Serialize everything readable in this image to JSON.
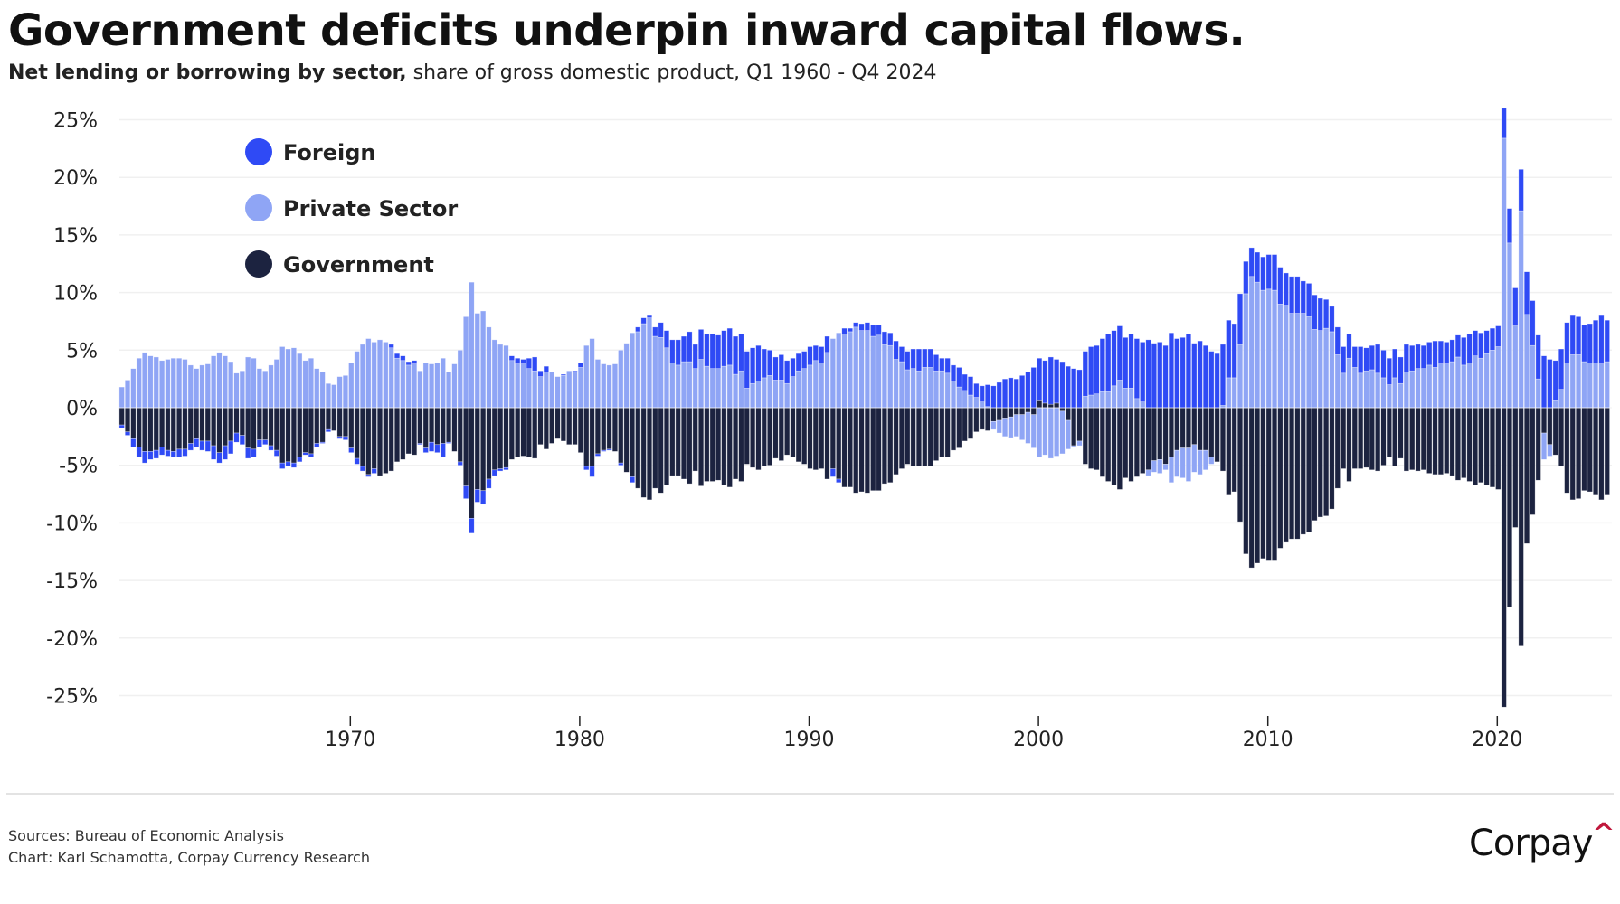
{
  "title": "Government deficits underpin inward capital flows.",
  "subtitle_bold": "Net lending or borrowing by sector,",
  "subtitle_rest": " share of gross domestic product, Q1 1960 - Q4 2024",
  "footer": {
    "sources": "Sources: Bureau of Economic Analysis",
    "credit": "Chart: Karl Schamotta, Corpay Currency Research",
    "logo": "Corpay"
  },
  "chart_data": {
    "type": "bar",
    "stacked": true,
    "x_start": "Q1 1960",
    "x_end": "Q4 2024",
    "frequency": "quarterly",
    "ylim": [
      -25,
      25
    ],
    "y_ticks": [
      25,
      20,
      15,
      10,
      5,
      0,
      -5,
      -10,
      -15,
      -20,
      -25
    ],
    "y_tick_labels": [
      "25%",
      "20%",
      "15%",
      "10%",
      "5%",
      "0%",
      "-5%",
      "-10%",
      "-15%",
      "-20%",
      "-25%"
    ],
    "x_ticks": [
      1970,
      1980,
      1990,
      2000,
      2010,
      2020
    ],
    "x_tick_labels": [
      "1970",
      "1980",
      "1990",
      "2000",
      "2010",
      "2020"
    ],
    "grid": "horizontal",
    "legend_position": "top-left",
    "series": [
      {
        "name": "Foreign",
        "color": "#2f4af5",
        "values": [
          -0.3,
          -0.3,
          -0.7,
          -0.9,
          -1.0,
          -0.7,
          -0.7,
          -0.7,
          -0.5,
          -0.5,
          -0.7,
          -0.6,
          -0.6,
          -0.7,
          -0.8,
          -0.9,
          -1.2,
          -0.9,
          -1.2,
          -1.1,
          -0.8,
          -0.8,
          -0.9,
          -0.7,
          -0.6,
          -0.4,
          -0.4,
          -0.5,
          -0.5,
          -0.4,
          -0.4,
          -0.4,
          -0.2,
          -0.3,
          -0.3,
          -0.1,
          -0.2,
          0,
          -0.2,
          -0.3,
          -0.4,
          -0.5,
          -0.4,
          -0.2,
          -0.4,
          0,
          0,
          0.3,
          0.4,
          0.4,
          0.3,
          0.3,
          -0.1,
          -0.4,
          -0.8,
          -0.7,
          -1.2,
          -0.1,
          0,
          -0.3,
          -1.1,
          -1.3,
          -1.1,
          -1.2,
          -0.8,
          -0.5,
          -0.2,
          -0.2,
          0.4,
          0.5,
          0.4,
          0.9,
          1.2,
          0.5,
          0.5,
          0,
          0,
          0.1,
          0,
          0.1,
          0.4,
          -0.3,
          -0.9,
          -0.2,
          -0.1,
          -0.1,
          0,
          -0.2,
          0,
          -0.5,
          0.4,
          0.5,
          0.2,
          0.8,
          1.3,
          1.5,
          2.0,
          2.2,
          2.2,
          2.6,
          2.1,
          2.6,
          2.8,
          3.0,
          2.9,
          3.1,
          3.2,
          3.3,
          3.2,
          3.2,
          3.1,
          3.1,
          2.5,
          2.2,
          2.0,
          2.2,
          2.0,
          1.6,
          1.5,
          1.5,
          1.6,
          1.3,
          1.4,
          1.4,
          -0.7,
          -0.3,
          0.5,
          0.3,
          0.4,
          0.6,
          0.7,
          1.0,
          0.9,
          1.1,
          1.1,
          1.6,
          1.3,
          1.6,
          1.7,
          1.9,
          1.6,
          1.6,
          1.4,
          1.1,
          1.3,
          1.4,
          1.7,
          1.4,
          1.6,
          1.2,
          1.4,
          1.9,
          1.9,
          2.2,
          2.5,
          2.6,
          2.5,
          2.8,
          3.1,
          3.5,
          3.7,
          3.7,
          4.1,
          3.8,
          4.0,
          3.6,
          3.4,
          3.3,
          3.9,
          4.2,
          4.2,
          4.6,
          5.0,
          4.8,
          4.7,
          4.4,
          4.7,
          5.2,
          5.2,
          5.9,
          5.6,
          5.7,
          5.4,
          6.5,
          6.0,
          6.1,
          6.4,
          5.6,
          5.8,
          5.4,
          4.9,
          4.7,
          5.3,
          5.0,
          4.7,
          4.4,
          2.8,
          2.5,
          2.6,
          2.9,
          3.0,
          3.1,
          3.2,
          2.8,
          3.2,
          3.2,
          2.8,
          2.9,
          3.0,
          2.8,
          2.5,
          2.2,
          2.4,
          2.3,
          2.1,
          1.8,
          2.3,
          2.0,
          2.1,
          2.5,
          2.4,
          2.3,
          2.5,
          2.3,
          2.4,
          2.2,
          2.1,
          2.0,
          2.0,
          2.3,
          2.0,
          1.9,
          1.9,
          1.9,
          2.4,
          2.5,
          2.2,
          2.2,
          2.0,
          1.9,
          1.8,
          2.6,
          3.0,
          3.3,
          3.6,
          3.7,
          3.9,
          3.8,
          4.5,
          4.2,
          3.5,
          3.5,
          3.5,
          3.4,
          3.3,
          3.2,
          3.4,
          3.7,
          4.2,
          3.6
        ]
      },
      {
        "name": "Private Sector",
        "color": "#8fa5f5",
        "values": [
          1.8,
          2.4,
          3.4,
          4.3,
          4.8,
          4.5,
          4.4,
          4.1,
          4.2,
          4.3,
          4.3,
          4.2,
          3.7,
          3.4,
          3.7,
          3.8,
          4.5,
          4.8,
          4.5,
          4.0,
          3.0,
          3.2,
          4.4,
          4.3,
          3.4,
          3.2,
          3.7,
          4.2,
          5.3,
          5.1,
          5.2,
          4.7,
          4.1,
          4.3,
          3.4,
          3.1,
          2.1,
          2.0,
          2.7,
          2.8,
          3.9,
          4.9,
          5.5,
          6.0,
          5.7,
          5.9,
          5.7,
          5.2,
          4.3,
          4.1,
          3.7,
          3.8,
          3.2,
          3.9,
          3.8,
          3.9,
          4.3,
          3.1,
          3.8,
          5.0,
          7.9,
          10.9,
          8.2,
          8.4,
          7.0,
          5.9,
          5.5,
          5.4,
          4.1,
          3.8,
          3.8,
          3.4,
          3.2,
          2.7,
          3.1,
          3.1,
          2.7,
          2.8,
          3.2,
          3.1,
          3.5,
          5.4,
          6.0,
          4.2,
          3.8,
          3.7,
          3.8,
          5.0,
          5.6,
          6.5,
          6.6,
          7.3,
          7.8,
          6.2,
          6.1,
          5.2,
          3.9,
          3.7,
          4.0,
          4.0,
          3.4,
          4.2,
          3.6,
          3.4,
          3.4,
          3.6,
          3.7,
          2.9,
          3.2,
          1.7,
          2.1,
          2.3,
          2.6,
          2.8,
          2.4,
          2.4,
          2.1,
          2.7,
          3.2,
          3.4,
          3.7,
          4.1,
          3.9,
          4.8,
          6.0,
          6.5,
          6.4,
          6.6,
          7.0,
          6.7,
          6.7,
          6.2,
          6.3,
          5.5,
          5.4,
          4.2,
          4.0,
          3.3,
          3.4,
          3.2,
          3.5,
          3.5,
          3.2,
          3.2,
          3.0,
          2.3,
          1.8,
          1.5,
          1.1,
          0.9,
          0.5,
          0.1,
          -0.7,
          -1.1,
          -1.6,
          -1.8,
          -1.9,
          -2.2,
          -2.7,
          -2.9,
          -4.3,
          -4.1,
          -4.4,
          -4.2,
          -3.7,
          -2.5,
          -0.1,
          -0.4,
          1.0,
          1.1,
          1.2,
          1.4,
          1.4,
          1.9,
          2.4,
          1.7,
          1.7,
          0.8,
          0.5,
          -0.5,
          -1.0,
          -1.2,
          -0.5,
          -2.2,
          -2.3,
          -2.6,
          -2.9,
          -2.4,
          -2.1,
          -1.7,
          -0.6,
          0,
          0.2,
          2.6,
          2.6,
          5.5,
          9.9,
          11.4,
          10.9,
          10.2,
          10.3,
          10.2,
          9.0,
          8.9,
          8.2,
          8.2,
          8.2,
          7.9,
          6.8,
          6.7,
          6.9,
          6.6,
          4.6,
          3.0,
          4.3,
          3.5,
          3.0,
          3.2,
          3.3,
          3.0,
          2.6,
          2.0,
          2.6,
          2.1,
          3.1,
          3.2,
          3.4,
          3.4,
          3.7,
          3.5,
          3.8,
          3.8,
          4.0,
          4.4,
          3.7,
          3.9,
          4.5,
          4.3,
          4.7,
          5.0,
          5.3,
          23.4,
          14.3,
          7.1,
          17.1,
          8.1,
          5.4,
          2.5,
          -2.3,
          -1.0,
          0.6,
          1.6,
          3.9,
          4.6,
          4.6,
          4.0,
          3.9,
          3.9,
          3.8,
          4.0
        ]
      },
      {
        "name": "Government",
        "color": "#1c2340",
        "values": [
          -1.5,
          -2.1,
          -2.7,
          -3.4,
          -3.8,
          -3.8,
          -3.7,
          -3.4,
          -3.7,
          -3.8,
          -3.6,
          -3.6,
          -3.1,
          -2.7,
          -2.9,
          -2.9,
          -3.3,
          -3.9,
          -3.3,
          -2.9,
          -2.2,
          -2.4,
          -3.5,
          -3.6,
          -2.8,
          -2.8,
          -3.3,
          -3.7,
          -4.8,
          -4.7,
          -4.8,
          -4.3,
          -3.9,
          -4.0,
          -3.1,
          -3.0,
          -1.9,
          -2.0,
          -2.5,
          -2.5,
          -3.5,
          -4.4,
          -5.1,
          -5.8,
          -5.3,
          -5.9,
          -5.7,
          -5.5,
          -4.7,
          -4.5,
          -4.0,
          -4.1,
          -3.1,
          -3.5,
          -3.0,
          -3.2,
          -3.1,
          -3.0,
          -3.8,
          -4.7,
          -6.8,
          -9.6,
          -7.1,
          -7.2,
          -6.2,
          -5.4,
          -5.3,
          -5.2,
          -4.5,
          -4.3,
          -4.2,
          -4.3,
          -4.4,
          -3.2,
          -3.6,
          -3.1,
          -2.7,
          -2.9,
          -3.2,
          -3.2,
          -3.9,
          -5.1,
          -5.1,
          -4.0,
          -3.7,
          -3.6,
          -3.8,
          -4.8,
          -5.6,
          -6.0,
          -7.0,
          -7.8,
          -8.0,
          -7.0,
          -7.4,
          -6.7,
          -5.9,
          -5.9,
          -6.2,
          -6.6,
          -5.5,
          -6.8,
          -6.4,
          -6.4,
          -6.3,
          -6.7,
          -6.9,
          -6.2,
          -6.4,
          -4.9,
          -5.2,
          -5.4,
          -5.1,
          -5.0,
          -4.4,
          -4.6,
          -4.1,
          -4.3,
          -4.7,
          -4.9,
          -5.3,
          -5.4,
          -5.3,
          -6.2,
          -5.3,
          -6.2,
          -6.9,
          -6.9,
          -7.4,
          -7.3,
          -7.4,
          -7.2,
          -7.2,
          -6.6,
          -6.5,
          -5.8,
          -5.3,
          -4.9,
          -5.1,
          -5.1,
          -5.1,
          -5.1,
          -4.6,
          -4.3,
          -4.3,
          -3.7,
          -3.5,
          -2.9,
          -2.7,
          -2.1,
          -1.9,
          -2.0,
          -1.2,
          -1.1,
          -0.9,
          -0.8,
          -0.6,
          -0.6,
          -0.4,
          -0.6,
          0.6,
          0.4,
          0.3,
          0.4,
          -0.3,
          -1.1,
          -3.3,
          -2.9,
          -4.9,
          -5.3,
          -5.4,
          -6.0,
          -6.4,
          -6.7,
          -7.1,
          -6.1,
          -6.4,
          -6.0,
          -5.7,
          -5.4,
          -4.6,
          -4.5,
          -4.9,
          -4.3,
          -3.7,
          -3.5,
          -3.5,
          -3.2,
          -3.7,
          -3.7,
          -4.3,
          -4.7,
          -5.5,
          -7.6,
          -7.3,
          -9.9,
          -12.7,
          -13.9,
          -13.5,
          -13.1,
          -13.3,
          -13.3,
          -12.2,
          -11.7,
          -11.4,
          -11.4,
          -11.0,
          -10.8,
          -9.8,
          -9.5,
          -9.4,
          -8.8,
          -7.0,
          -5.3,
          -6.4,
          -5.3,
          -5.3,
          -5.2,
          -5.4,
          -5.5,
          -5.0,
          -4.3,
          -5.1,
          -4.4,
          -5.5,
          -5.4,
          -5.5,
          -5.4,
          -5.7,
          -5.8,
          -5.8,
          -5.7,
          -5.9,
          -6.3,
          -6.1,
          -6.4,
          -6.7,
          -6.5,
          -6.7,
          -6.9,
          -7.1,
          -26.0,
          -17.3,
          -10.4,
          -20.7,
          -11.8,
          -9.3,
          -6.3,
          -2.2,
          -3.2,
          -4.1,
          -5.1,
          -7.4,
          -8.0,
          -7.9,
          -7.2,
          -7.3,
          -7.6,
          -8.0,
          -7.6
        ]
      }
    ]
  }
}
